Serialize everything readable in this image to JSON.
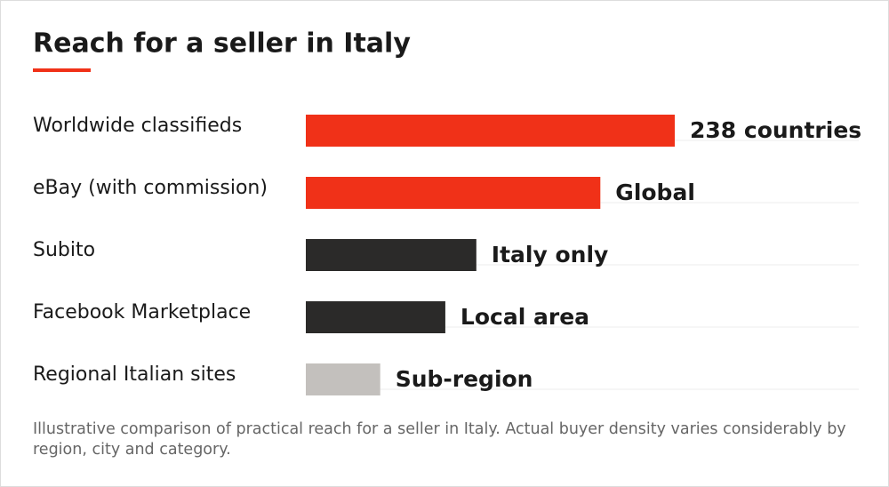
{
  "chart_data": {
    "type": "bar",
    "orientation": "horizontal",
    "title": "Reach for a seller in Italy",
    "categories": [
      "Worldwide classifieds",
      "eBay (with commission)",
      "Subito",
      "Facebook Marketplace",
      "Regional Italian sites"
    ],
    "values": [
      238,
      190,
      110,
      90,
      48
    ],
    "value_labels": [
      "238 countries",
      "Global",
      "Italy only",
      "Local area",
      "Sub-region"
    ],
    "colors": [
      "#f03118",
      "#f03118",
      "#2b2a29",
      "#2b2a29",
      "#c3c0bd"
    ],
    "note": "Illustrative comparison of practical reach for a seller in Italy. Actual buyer density varies considerably by region, city and category."
  }
}
